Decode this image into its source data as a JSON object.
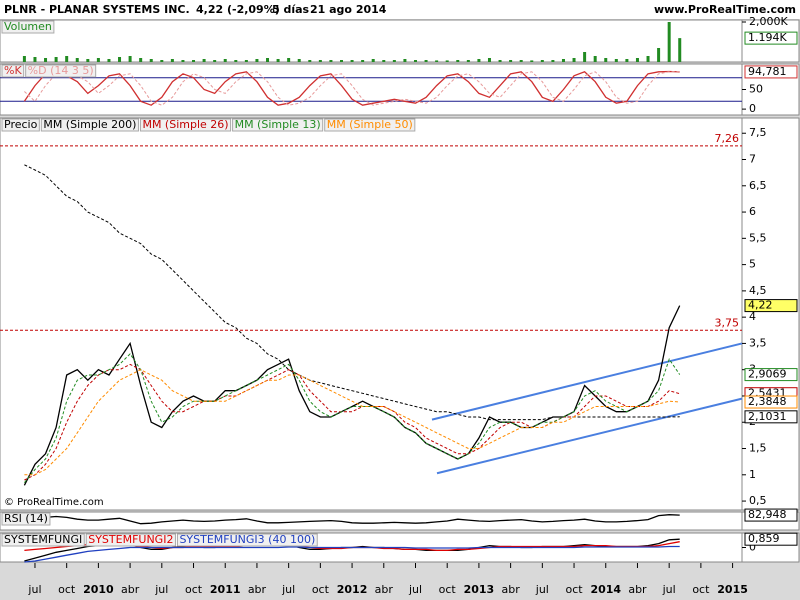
{
  "header": {
    "symbol": "PLNR - PLANAR SYSTEMS INC.",
    "change": "4,22 (-2,09%)",
    "period": "5 días",
    "date": "21 ago 2014",
    "site": "www.ProRealTime.com"
  },
  "watermark": "© ProRealTime.com",
  "time_axis": {
    "categories": [
      "jul",
      "oct",
      "2010",
      "abr",
      "jul",
      "oct",
      "2011",
      "abr",
      "jul",
      "oct",
      "2012",
      "abr",
      "jul",
      "oct",
      "2013",
      "abr",
      "jul",
      "oct",
      "2014",
      "abr",
      "jul",
      "oct",
      "2015"
    ]
  },
  "chart_data": [
    {
      "type": "bar",
      "ylim": [
        0,
        2100
      ],
      "yticks": [
        {
          "value": 2000,
          "label": "2,000K"
        }
      ],
      "series": [
        {
          "name": "Volumen",
          "color": "#228b22",
          "last_label": {
            "value": 1194,
            "label": "1.194K"
          },
          "values": [
            300,
            250,
            200,
            250,
            300,
            200,
            150,
            200,
            150,
            250,
            300,
            200,
            150,
            100,
            150,
            100,
            100,
            150,
            100,
            150,
            100,
            100,
            150,
            200,
            150,
            200,
            150,
            100,
            100,
            100,
            100,
            100,
            100,
            150,
            100,
            100,
            150,
            100,
            100,
            80,
            80,
            100,
            100,
            150,
            200,
            100,
            100,
            100,
            80,
            100,
            100,
            150,
            200,
            500,
            300,
            200,
            150,
            150,
            200,
            300,
            700,
            2000,
            1194
          ]
        }
      ]
    },
    {
      "type": "line",
      "ylim": [
        -15,
        115
      ],
      "yticks": [
        50,
        0
      ],
      "bands": [
        20,
        80
      ],
      "band_color": "#1a1a8c",
      "series": [
        {
          "name": "%K",
          "color": "#d03030",
          "last_label": {
            "value": 94.781,
            "label": "94,781"
          },
          "values": [
            20,
            60,
            90,
            95,
            85,
            70,
            40,
            60,
            85,
            90,
            60,
            20,
            10,
            30,
            70,
            90,
            80,
            50,
            40,
            70,
            90,
            95,
            70,
            30,
            10,
            15,
            30,
            60,
            85,
            90,
            60,
            25,
            10,
            15,
            20,
            25,
            20,
            15,
            30,
            60,
            85,
            90,
            70,
            40,
            30,
            60,
            90,
            95,
            70,
            30,
            20,
            50,
            85,
            95,
            70,
            30,
            15,
            20,
            60,
            90,
            95,
            96,
            94.781
          ]
        },
        {
          "name": "%D (14 3 5)",
          "color": "#e79a9a",
          "dash": true,
          "values": [
            45,
            20,
            60,
            90,
            95,
            85,
            70,
            40,
            60,
            85,
            90,
            60,
            20,
            10,
            30,
            70,
            90,
            80,
            50,
            40,
            70,
            90,
            95,
            70,
            30,
            10,
            15,
            30,
            60,
            85,
            90,
            60,
            25,
            10,
            15,
            20,
            25,
            20,
            15,
            30,
            60,
            85,
            90,
            70,
            40,
            30,
            60,
            90,
            95,
            70,
            30,
            20,
            50,
            85,
            95,
            70,
            30,
            15,
            20,
            60,
            90,
            95,
            96
          ]
        }
      ]
    },
    {
      "type": "line",
      "ylim": [
        0.33,
        7.79
      ],
      "yticks": [
        {
          "value": 7.5,
          "label": "7,5"
        },
        7,
        {
          "value": 6.5,
          "label": "6,5"
        },
        6,
        {
          "value": 5.5,
          "label": "5,5"
        },
        5,
        {
          "value": 4.5,
          "label": "4,5"
        },
        4,
        {
          "value": 3.5,
          "label": "3,5"
        },
        3,
        {
          "value": 2.5,
          "label": "2,5"
        },
        2,
        {
          "value": 1.5,
          "label": "1,5"
        },
        1,
        {
          "value": 0.5,
          "label": "0,5"
        }
      ],
      "hlines": [
        {
          "value": 7.26,
          "label": "7,26",
          "color": "#c00000"
        },
        {
          "value": 3.75,
          "label": "3,75",
          "color": "#c00000"
        }
      ],
      "trendlines": [
        {
          "color": "#4a7fe0",
          "values": [
            2.05,
            3.5
          ]
        },
        {
          "color": "#4a7fe0",
          "values": [
            1.03,
            2.45
          ]
        }
      ],
      "series": [
        {
          "name": "Precio",
          "color": "#000000",
          "label_fill": "#ffff66",
          "last_label": {
            "value": 4.22,
            "label": "4,22"
          },
          "values": [
            0.8,
            1.2,
            1.4,
            1.9,
            2.9,
            3.0,
            2.8,
            3.0,
            2.9,
            3.2,
            3.5,
            2.7,
            2.0,
            1.9,
            2.2,
            2.4,
            2.5,
            2.4,
            2.4,
            2.6,
            2.6,
            2.7,
            2.8,
            3.0,
            3.1,
            3.2,
            2.6,
            2.2,
            2.1,
            2.1,
            2.2,
            2.3,
            2.4,
            2.3,
            2.2,
            2.1,
            1.9,
            1.8,
            1.6,
            1.5,
            1.4,
            1.3,
            1.4,
            1.7,
            2.1,
            2.0,
            2.0,
            1.9,
            1.9,
            2.0,
            2.1,
            2.1,
            2.2,
            2.7,
            2.5,
            2.3,
            2.2,
            2.2,
            2.3,
            2.4,
            2.8,
            3.8,
            4.22
          ]
        },
        {
          "name": "MM (Simple 200)",
          "color": "#000000",
          "dash": true,
          "last_label": {
            "value": 2.1031,
            "label": "2,1031"
          },
          "values": [
            6.9,
            6.8,
            6.7,
            6.5,
            6.3,
            6.2,
            6.0,
            5.9,
            5.8,
            5.6,
            5.5,
            5.4,
            5.2,
            5.1,
            4.9,
            4.7,
            4.5,
            4.3,
            4.1,
            3.9,
            3.8,
            3.6,
            3.5,
            3.3,
            3.2,
            3.0,
            2.9,
            2.8,
            2.75,
            2.7,
            2.65,
            2.6,
            2.55,
            2.5,
            2.45,
            2.4,
            2.35,
            2.3,
            2.25,
            2.2,
            2.2,
            2.15,
            2.1,
            2.1,
            2.05,
            2.05,
            2.05,
            2.05,
            2.05,
            2.05,
            2.1,
            2.1,
            2.1,
            2.1,
            2.1,
            2.1,
            2.1,
            2.1,
            2.1,
            2.1,
            2.1,
            2.1,
            2.1031
          ]
        },
        {
          "name": "MM (Simple 26)",
          "color": "#c00000",
          "dash": true,
          "last_label": {
            "value": 2.5431,
            "label": "2,5431"
          },
          "values": [
            0.9,
            1.0,
            1.2,
            1.5,
            2.0,
            2.4,
            2.7,
            2.9,
            3.0,
            3.0,
            3.1,
            3.0,
            2.7,
            2.4,
            2.2,
            2.2,
            2.3,
            2.4,
            2.4,
            2.5,
            2.5,
            2.6,
            2.7,
            2.8,
            2.9,
            3.0,
            2.9,
            2.6,
            2.4,
            2.2,
            2.2,
            2.2,
            2.3,
            2.3,
            2.3,
            2.2,
            2.0,
            1.9,
            1.7,
            1.6,
            1.5,
            1.4,
            1.4,
            1.5,
            1.7,
            1.9,
            2.0,
            2.0,
            1.9,
            1.9,
            2.0,
            2.1,
            2.1,
            2.3,
            2.5,
            2.5,
            2.4,
            2.3,
            2.3,
            2.3,
            2.4,
            2.6,
            2.5431
          ]
        },
        {
          "name": "MM (Simple 13)",
          "color": "#228b22",
          "dash": true,
          "last_label": {
            "value": 2.9069,
            "label": "2,9069"
          },
          "values": [
            0.85,
            1.1,
            1.3,
            1.7,
            2.4,
            2.8,
            2.9,
            2.9,
            3.0,
            3.1,
            3.3,
            3.0,
            2.4,
            2.0,
            2.1,
            2.3,
            2.4,
            2.4,
            2.4,
            2.5,
            2.6,
            2.7,
            2.8,
            2.9,
            3.0,
            3.1,
            2.8,
            2.4,
            2.2,
            2.1,
            2.2,
            2.3,
            2.3,
            2.3,
            2.2,
            2.1,
            1.9,
            1.8,
            1.6,
            1.5,
            1.4,
            1.3,
            1.4,
            1.6,
            1.9,
            2.0,
            2.0,
            1.9,
            1.9,
            2.0,
            2.0,
            2.1,
            2.2,
            2.5,
            2.6,
            2.4,
            2.3,
            2.2,
            2.3,
            2.4,
            2.6,
            3.2,
            2.9069
          ]
        },
        {
          "name": "MM (Simple 50)",
          "color": "#ff8c00",
          "dash": true,
          "last_label": {
            "value": 2.3848,
            "label": "2,3848"
          },
          "values": [
            1.0,
            1.0,
            1.1,
            1.3,
            1.5,
            1.8,
            2.1,
            2.4,
            2.6,
            2.8,
            2.9,
            3.0,
            2.9,
            2.8,
            2.6,
            2.5,
            2.4,
            2.4,
            2.4,
            2.4,
            2.5,
            2.6,
            2.7,
            2.8,
            2.8,
            2.9,
            2.9,
            2.8,
            2.7,
            2.6,
            2.5,
            2.4,
            2.3,
            2.3,
            2.3,
            2.2,
            2.1,
            2.0,
            1.9,
            1.8,
            1.7,
            1.6,
            1.5,
            1.5,
            1.6,
            1.7,
            1.8,
            1.9,
            1.9,
            1.9,
            2.0,
            2.0,
            2.1,
            2.2,
            2.3,
            2.3,
            2.3,
            2.3,
            2.3,
            2.3,
            2.35,
            2.4,
            2.3848
          ]
        }
      ]
    },
    {
      "type": "line",
      "ylim": [
        0,
        100
      ],
      "series": [
        {
          "name": "RSI (14)",
          "color": "#000000",
          "last_label": {
            "value": 82.948,
            "label": "82,948"
          },
          "values": [
            40,
            60,
            70,
            75,
            70,
            60,
            55,
            55,
            60,
            65,
            50,
            35,
            38,
            45,
            50,
            55,
            50,
            48,
            50,
            55,
            58,
            62,
            50,
            40,
            40,
            42,
            45,
            48,
            50,
            52,
            48,
            40,
            38,
            38,
            40,
            42,
            40,
            38,
            40,
            45,
            50,
            60,
            55,
            50,
            48,
            52,
            55,
            58,
            50,
            45,
            48,
            52,
            55,
            60,
            50,
            45,
            45,
            48,
            52,
            58,
            80,
            85,
            82.948
          ]
        }
      ]
    },
    {
      "type": "line",
      "ylim": [
        -1.5,
        1.5
      ],
      "yticks": [
        0
      ],
      "series": [
        {
          "name": "SYSTEMFUNGI",
          "color": "#000000",
          "last_label": {
            "value": 0.859,
            "label": "0,859"
          },
          "values": [
            -1.4,
            -1.1,
            -0.8,
            -0.5,
            -0.3,
            -0.1,
            0.1,
            0.2,
            0.3,
            0.2,
            0.3,
            0,
            -0.2,
            -0.2,
            0,
            0.1,
            0.1,
            0,
            0,
            0.1,
            0.1,
            0.2,
            0.2,
            0.3,
            0.3,
            0.3,
            0,
            -0.2,
            -0.2,
            -0.1,
            0,
            0,
            0.1,
            0,
            0,
            -0.1,
            -0.2,
            -0.2,
            -0.3,
            -0.3,
            -0.3,
            -0.3,
            -0.2,
            0,
            0.2,
            0.1,
            0.1,
            0,
            0,
            0.1,
            0.1,
            0.1,
            0.2,
            0.3,
            0.2,
            0.1,
            0.1,
            0.1,
            0.1,
            0.2,
            0.4,
            0.8,
            0.859
          ]
        },
        {
          "name": "SYSTEMFUNGI2",
          "color": "#e00000",
          "values": [
            -0.3,
            -0.2,
            -0.1,
            0,
            0.1,
            0.2,
            0.3,
            0.3,
            0.3,
            0.3,
            0.2,
            0.1,
            0,
            -0.1,
            0,
            0,
            0.1,
            0.1,
            0.1,
            0.1,
            0.1,
            0.2,
            0.2,
            0.2,
            0.3,
            0.2,
            0.1,
            0,
            -0.1,
            -0.1,
            -0.1,
            0,
            0,
            0,
            -0.1,
            -0.1,
            -0.2,
            -0.2,
            -0.2,
            -0.3,
            -0.3,
            -0.2,
            -0.2,
            -0.1,
            0,
            0.1,
            0.1,
            0.1,
            0.1,
            0.1,
            0.1,
            0.1,
            0.1,
            0.2,
            0.2,
            0.2,
            0.1,
            0.1,
            0.1,
            0.1,
            0.2,
            0.4,
            0.6
          ]
        },
        {
          "name": "SYSTEMFUNGI3 (40 100)",
          "color": "#2040c0",
          "values": [
            -1.5,
            -1.4,
            -1.2,
            -1.0,
            -0.8,
            -0.6,
            -0.4,
            -0.3,
            -0.2,
            -0.1,
            0,
            0,
            0,
            0,
            0,
            0,
            0,
            0,
            0,
            0,
            0,
            0,
            0,
            0,
            0,
            0.05,
            0.05,
            0,
            0,
            0,
            0,
            0,
            0,
            0,
            0,
            0,
            0,
            -0.05,
            -0.05,
            -0.05,
            -0.05,
            -0.05,
            -0.05,
            0,
            0,
            0,
            0,
            0,
            0,
            0,
            0,
            0,
            0,
            0.05,
            0.05,
            0.05,
            0.05,
            0.05,
            0.05,
            0.05,
            0.05,
            0.1,
            0.1
          ]
        }
      ]
    }
  ]
}
